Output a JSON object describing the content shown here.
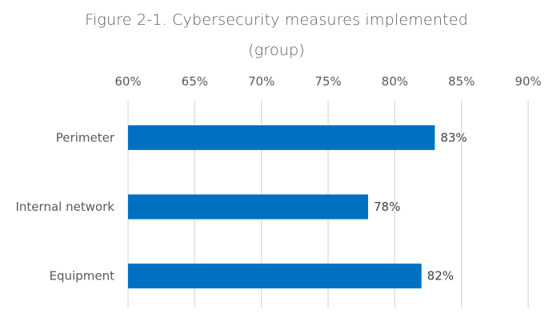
{
  "chart_data": {
    "type": "bar",
    "orientation": "horizontal",
    "title": "Figure 2-1. Cybersecurity measures implemented",
    "subtitle": "(group)",
    "categories": [
      "Perimeter",
      "Internal network",
      "Equipment"
    ],
    "values": [
      83,
      78,
      82
    ],
    "data_labels": [
      "83%",
      "78%",
      "82%"
    ],
    "xlim": [
      60,
      90
    ],
    "x_ticks": [
      60,
      65,
      70,
      75,
      80,
      85,
      90
    ],
    "x_tick_labels": [
      "60%",
      "65%",
      "70%",
      "75%",
      "80%",
      "85%",
      "90%"
    ],
    "x_axis_position": "top",
    "xlabel": "",
    "ylabel": "",
    "grid": true,
    "legend": "none",
    "bar_color": "#0070C0",
    "grid_color": "#D9D9D9"
  }
}
